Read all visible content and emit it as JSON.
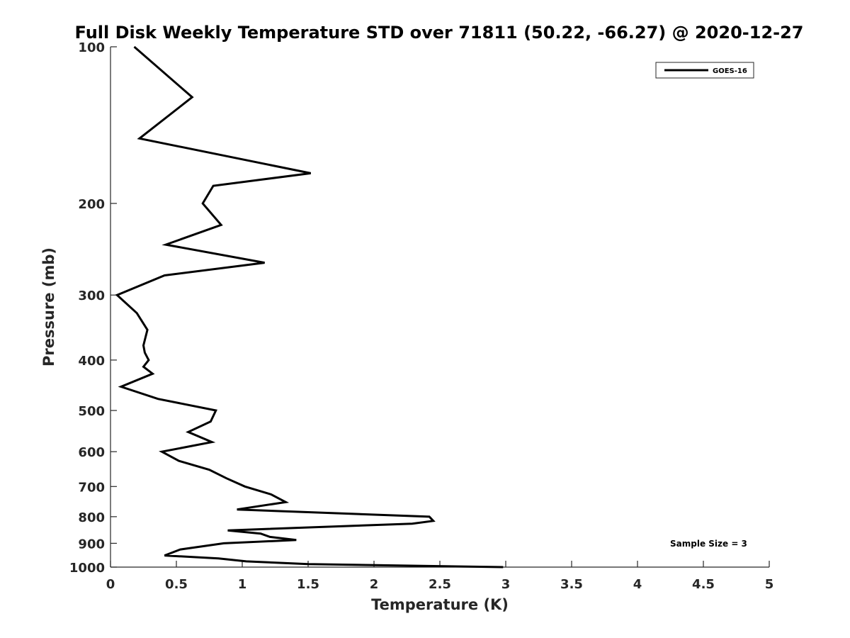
{
  "chart_data": {
    "type": "line",
    "title": "Full Disk Weekly Temperature STD over 71811 (50.22, -66.27) @ 2020-12-27",
    "xlabel": "Temperature (K)",
    "ylabel": "Pressure (mb)",
    "xlim": [
      0,
      5
    ],
    "ylim": [
      100,
      1000
    ],
    "y_scale": "log",
    "y_reversed": true,
    "x_ticks": [
      "0",
      "0.5",
      "1",
      "1.5",
      "2",
      "2.5",
      "3",
      "3.5",
      "4",
      "4.5",
      "5"
    ],
    "y_ticks": [
      "100",
      "200",
      "300",
      "400",
      "500",
      "600",
      "700",
      "800",
      "900",
      "1000"
    ],
    "legend_position": "top-right",
    "annotation": "Sample Size = 3",
    "series": [
      {
        "name": "GOES-16",
        "color": "#000000",
        "points": [
          [
            0.18,
            100
          ],
          [
            0.62,
            125
          ],
          [
            0.22,
            150
          ],
          [
            1.52,
            175
          ],
          [
            0.78,
            185
          ],
          [
            0.7,
            200
          ],
          [
            0.84,
            220
          ],
          [
            0.42,
            240
          ],
          [
            1.17,
            260
          ],
          [
            0.41,
            275
          ],
          [
            0.05,
            300
          ],
          [
            0.2,
            325
          ],
          [
            0.28,
            350
          ],
          [
            0.25,
            375
          ],
          [
            0.26,
            387
          ],
          [
            0.29,
            400
          ],
          [
            0.25,
            412
          ],
          [
            0.32,
            425
          ],
          [
            0.08,
            450
          ],
          [
            0.36,
            475
          ],
          [
            0.8,
            500
          ],
          [
            0.76,
            525
          ],
          [
            0.59,
            550
          ],
          [
            0.77,
            575
          ],
          [
            0.39,
            600
          ],
          [
            0.52,
            625
          ],
          [
            0.75,
            650
          ],
          [
            0.88,
            675
          ],
          [
            1.02,
            700
          ],
          [
            1.22,
            725
          ],
          [
            1.33,
            750
          ],
          [
            0.96,
            775
          ],
          [
            2.42,
            800
          ],
          [
            2.45,
            815
          ],
          [
            2.29,
            825
          ],
          [
            0.89,
            850
          ],
          [
            1.14,
            862
          ],
          [
            1.21,
            875
          ],
          [
            1.41,
            887
          ],
          [
            0.86,
            900
          ],
          [
            0.53,
            925
          ],
          [
            0.41,
            950
          ],
          [
            0.82,
            962
          ],
          [
            1.03,
            975
          ],
          [
            1.5,
            987
          ],
          [
            2.98,
            1000
          ]
        ]
      }
    ]
  }
}
